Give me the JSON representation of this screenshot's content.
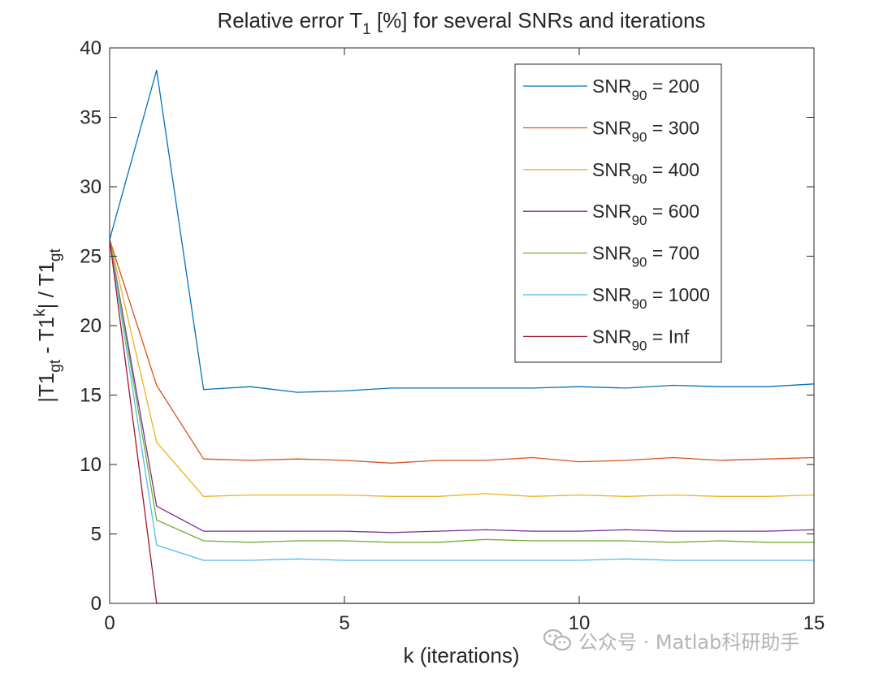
{
  "chart_data": {
    "type": "line",
    "title_main": "Relative error T",
    "title_sub": "1",
    "title_rest": " [%] for several SNRs and iterations",
    "xlabel": "k (iterations)",
    "ylabel": {
      "p1": "|T1",
      "s1": "gt",
      "p2": " - T1",
      "s2": "k",
      "p3": "| / T1",
      "s3": "gt"
    },
    "xlim": [
      0,
      15
    ],
    "ylim": [
      0,
      40
    ],
    "xticks": [
      0,
      5,
      10,
      15
    ],
    "yticks": [
      0,
      5,
      10,
      15,
      20,
      25,
      30,
      35,
      40
    ],
    "grid": false,
    "legend_position": "top-right",
    "x": [
      0,
      1,
      2,
      3,
      4,
      5,
      6,
      7,
      8,
      9,
      10,
      11,
      12,
      13,
      14,
      15
    ],
    "series": [
      {
        "name": "SNR90 = 200",
        "label_main": "SNR",
        "label_sub": "90",
        "label_rest": " = 200",
        "color": "#0072BD",
        "values": [
          26.2,
          38.4,
          15.4,
          15.6,
          15.2,
          15.3,
          15.5,
          15.5,
          15.5,
          15.5,
          15.6,
          15.5,
          15.7,
          15.6,
          15.6,
          15.8
        ]
      },
      {
        "name": "SNR90 = 300",
        "label_main": "SNR",
        "label_sub": "90",
        "label_rest": " = 300",
        "color": "#D95319",
        "values": [
          26.2,
          15.7,
          10.4,
          10.3,
          10.4,
          10.3,
          10.1,
          10.3,
          10.3,
          10.5,
          10.2,
          10.3,
          10.5,
          10.3,
          10.4,
          10.5
        ]
      },
      {
        "name": "SNR90 = 400",
        "label_main": "SNR",
        "label_sub": "90",
        "label_rest": " = 400",
        "color": "#EDB120",
        "values": [
          26.2,
          11.6,
          7.7,
          7.8,
          7.8,
          7.8,
          7.7,
          7.7,
          7.9,
          7.7,
          7.8,
          7.7,
          7.8,
          7.7,
          7.7,
          7.8
        ]
      },
      {
        "name": "SNR90 = 600",
        "label_main": "SNR",
        "label_sub": "90",
        "label_rest": " = 600",
        "color": "#7E2F8E",
        "values": [
          26.2,
          7.0,
          5.2,
          5.2,
          5.2,
          5.2,
          5.1,
          5.2,
          5.3,
          5.2,
          5.2,
          5.3,
          5.2,
          5.2,
          5.2,
          5.3
        ]
      },
      {
        "name": "SNR90 = 700",
        "label_main": "SNR",
        "label_sub": "90",
        "label_rest": " = 700",
        "color": "#77AC30",
        "values": [
          26.2,
          6.0,
          4.5,
          4.4,
          4.5,
          4.5,
          4.4,
          4.4,
          4.6,
          4.5,
          4.5,
          4.5,
          4.4,
          4.5,
          4.4,
          4.4
        ]
      },
      {
        "name": "SNR90 = 1000",
        "label_main": "SNR",
        "label_sub": "90",
        "label_rest": " = 1000",
        "color": "#4DBEEE",
        "values": [
          26.2,
          4.2,
          3.1,
          3.1,
          3.2,
          3.1,
          3.1,
          3.1,
          3.1,
          3.1,
          3.1,
          3.2,
          3.1,
          3.1,
          3.1,
          3.1
        ]
      },
      {
        "name": "SNR90 = Inf",
        "label_main": "SNR",
        "label_sub": "90",
        "label_rest": " = Inf",
        "color": "#A2142F",
        "values": [
          26.2,
          0.0,
          0.0,
          0.0,
          0.0,
          0.0,
          0.0,
          0.0,
          0.0,
          0.0,
          0.0,
          0.0,
          0.0,
          0.0,
          0.0,
          0.0
        ]
      }
    ]
  },
  "watermark": {
    "text": "公众号 · Matlab科研助手",
    "icon": "wechat-icon"
  }
}
